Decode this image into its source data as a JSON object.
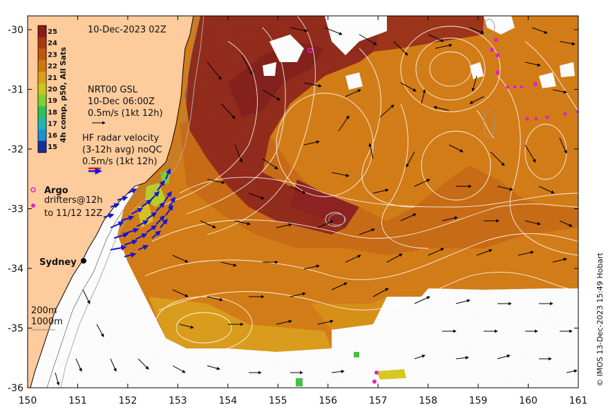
{
  "map": {
    "timestamp": "10-Dec-2023 02Z",
    "colorbar": {
      "title": "4h comp, p50, All Sats",
      "levels": [
        {
          "v": "25",
          "c": "#8b1a1a"
        },
        {
          "v": "24",
          "c": "#a9380f"
        },
        {
          "v": "23",
          "c": "#c2570e"
        },
        {
          "v": "22",
          "c": "#d07810"
        },
        {
          "v": "21",
          "c": "#dc9e14"
        },
        {
          "v": "20",
          "c": "#c8c818"
        },
        {
          "v": "19",
          "c": "#7fd02a"
        },
        {
          "v": "18",
          "c": "#2fbf5a"
        },
        {
          "v": "17",
          "c": "#1fb6b0"
        },
        {
          "v": "16",
          "c": "#1f8fd6"
        },
        {
          "v": "15",
          "c": "#1630a0"
        }
      ]
    },
    "gsl": {
      "line1": "NRT00 GSL",
      "line2": "10-Dec 06:00Z",
      "line3": "0.5m/s (1kt 12h)"
    },
    "radar": {
      "line1": "HF radar velocity",
      "line2": "(3-12h avg) noQC",
      "line3": "0.5m/s (1kt 12h)"
    },
    "argo_label": "Argo",
    "drifter": {
      "line1": "drifters@12h",
      "line2": "to 11/12 12Z"
    },
    "city": "Sydney",
    "isobaths": {
      "line1": "200m",
      "line2": "1000m"
    },
    "credit": "© IMOS 13-Dec-2023 15:49 Hobart",
    "x_ticks": [
      "150",
      "151",
      "152",
      "153",
      "154",
      "155",
      "156",
      "157",
      "158",
      "159",
      "160",
      "161"
    ],
    "y_ticks": [
      "-30",
      "-31",
      "-32",
      "-33",
      "-34",
      "-35",
      "-36"
    ],
    "colors": {
      "land": "#fdcb9c",
      "warm": "#d3790f",
      "hot": "#8b1a1a",
      "radar_arrow": "#1515d0",
      "argo": "#e020d0"
    }
  }
}
